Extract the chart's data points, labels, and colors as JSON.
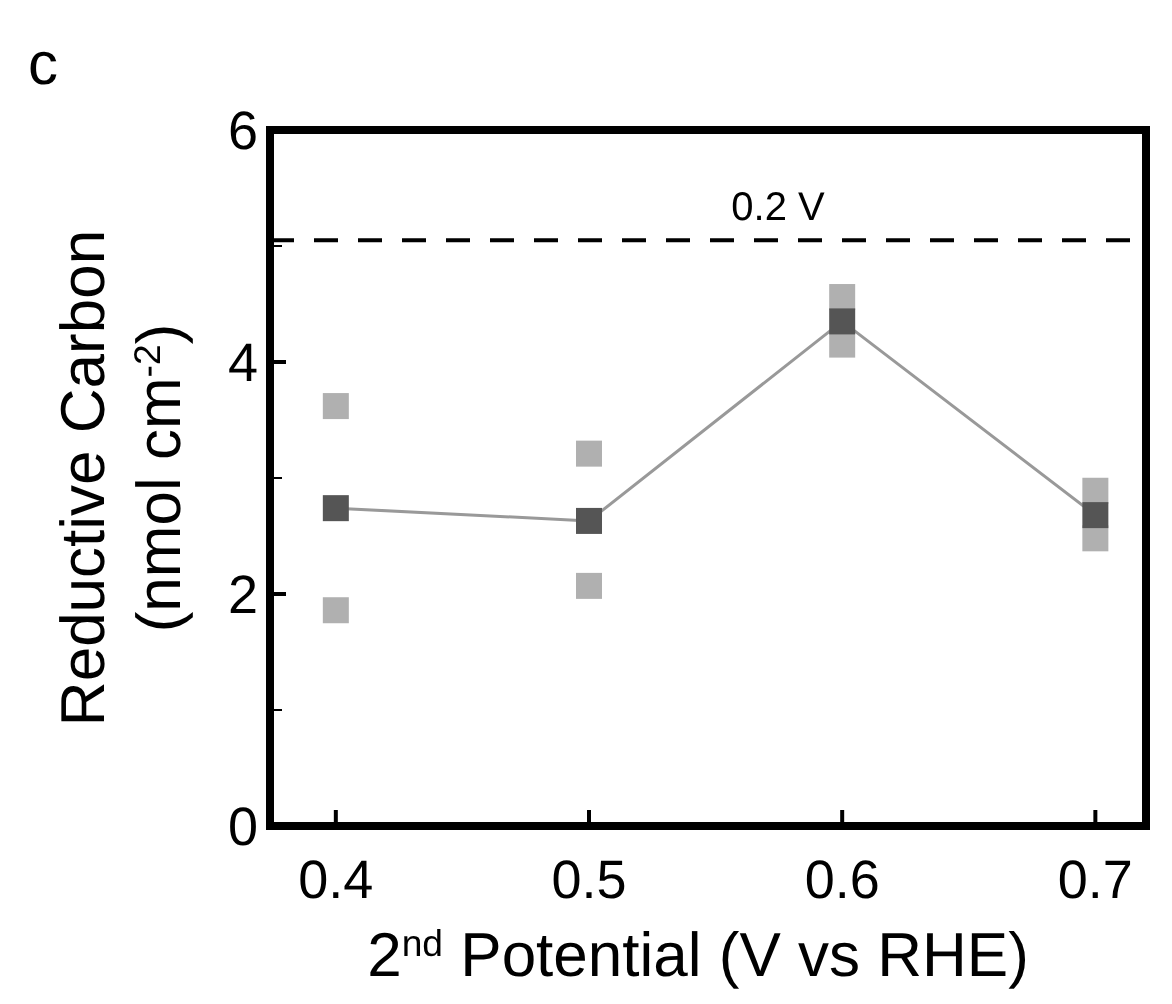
{
  "chart_data": {
    "type": "scatter",
    "title": "c",
    "xlabel": "2$^{nd}$ Potential (V vs RHE)",
    "ylabel": "Reductive Carbon\n(nmol cm$^{-2}$)",
    "xlim": [
      0.374,
      0.72
    ],
    "xticks": [
      0.4,
      0.5,
      0.6,
      0.7
    ],
    "ylim": [
      0,
      6
    ],
    "yticks": [
      0,
      2,
      4,
      6
    ],
    "grid": false,
    "marker": "square",
    "series": [
      {
        "type": "scatter",
        "color": "#b0b0b0",
        "x": [
          0.4,
          0.4,
          0.5,
          0.5,
          0.6,
          0.6,
          0.7,
          0.7
        ],
        "values": [
          3.62,
          1.86,
          3.21,
          2.07,
          4.56,
          4.15,
          2.89,
          2.48
        ]
      },
      {
        "type": "line",
        "color": "#555555",
        "x": [
          0.4,
          0.5,
          0.6,
          0.7
        ],
        "values": [
          2.74,
          2.63,
          4.35,
          2.68
        ]
      }
    ],
    "ref_lines": [
      {
        "axis": "y",
        "value": 5.05,
        "label": "0.2 V",
        "line_style": "dashed",
        "color": "#000000"
      }
    ]
  }
}
